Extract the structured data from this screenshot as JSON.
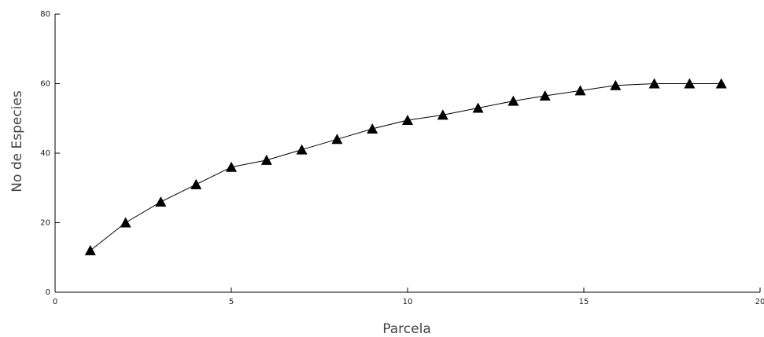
{
  "chart_data": {
    "type": "line",
    "x_label": "Parcela",
    "y_label": "No de Especies",
    "x": [
      1,
      2,
      3,
      4,
      5,
      6,
      7,
      8,
      9,
      10,
      11,
      12,
      13,
      13.9,
      14.9,
      15.9,
      17,
      18,
      18.9
    ],
    "series": [
      {
        "name": "Especies",
        "color": "#000000",
        "values": [
          12,
          20,
          26,
          31,
          36,
          38,
          41,
          44,
          47,
          49.5,
          51,
          53,
          55,
          56.5,
          58,
          59.5,
          60,
          60,
          60
        ]
      }
    ],
    "xlim": [
      0,
      20
    ],
    "xticks": [
      0,
      5,
      10,
      15,
      20
    ],
    "ylim": [
      0,
      80
    ],
    "yticks": [
      0,
      20,
      40,
      60,
      80
    ],
    "grid": false
  }
}
